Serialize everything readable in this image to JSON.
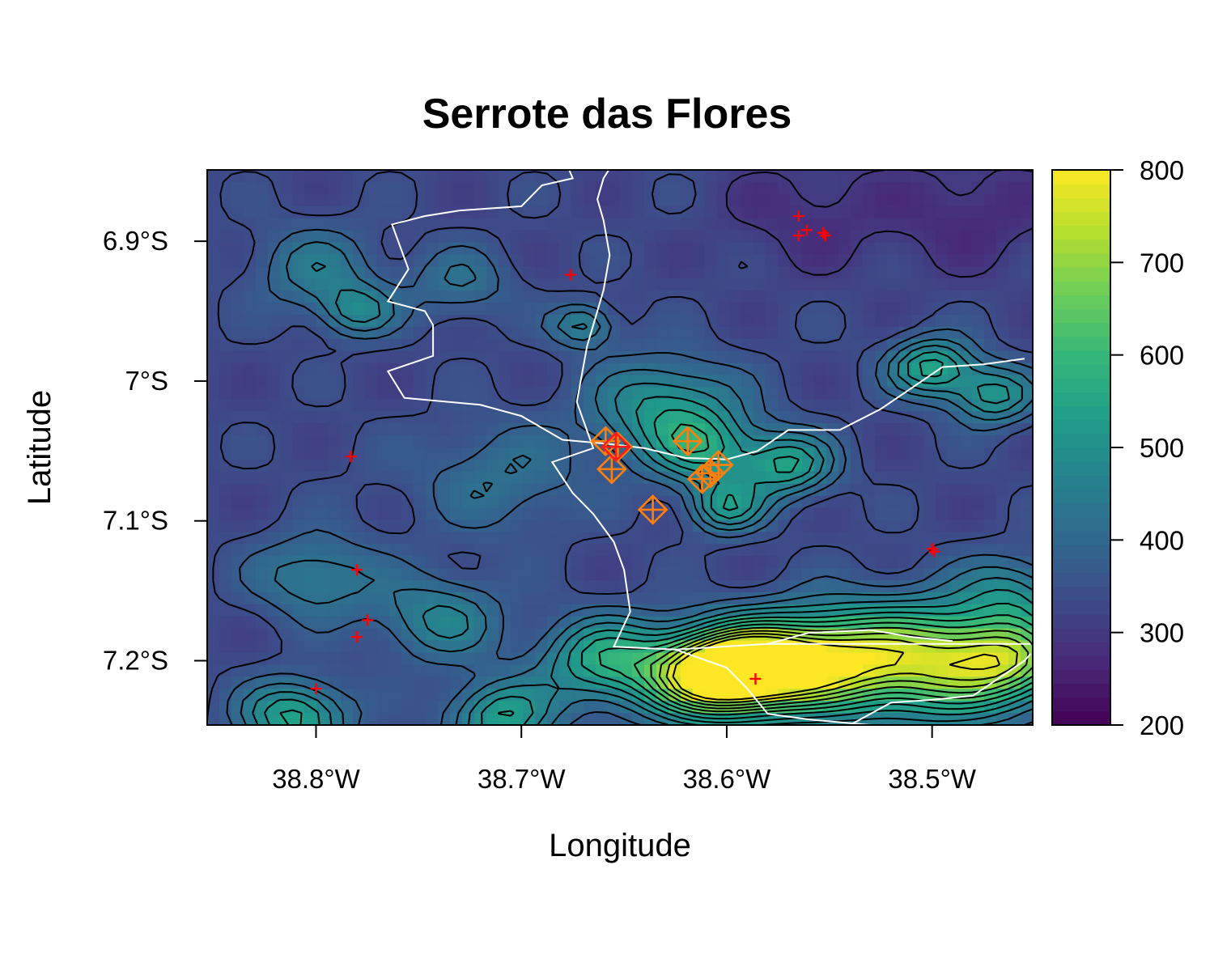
{
  "chart_data": {
    "type": "heatmap",
    "title": "Serrote das Flores",
    "xlabel": "Longitude",
    "ylabel": "Latitude",
    "xlim": [
      -38.853,
      -38.451
    ],
    "ylim": [
      -7.246,
      -6.849
    ],
    "x_ticks": [
      {
        "value": -38.8,
        "label": "38.8°W"
      },
      {
        "value": -38.7,
        "label": "38.7°W"
      },
      {
        "value": -38.6,
        "label": "38.6°W"
      },
      {
        "value": -38.5,
        "label": "38.5°W"
      }
    ],
    "y_ticks": [
      {
        "value": -6.9,
        "label": "6.9°S"
      },
      {
        "value": -7.0,
        "label": "7°S"
      },
      {
        "value": -7.1,
        "label": "7.1°S"
      },
      {
        "value": -7.2,
        "label": "7.2°S"
      }
    ],
    "colorbar": {
      "range": [
        200,
        800
      ],
      "ticks": [
        {
          "value": 200,
          "label": "200"
        },
        {
          "value": 300,
          "label": "300"
        },
        {
          "value": 400,
          "label": "400"
        },
        {
          "value": 500,
          "label": "500"
        },
        {
          "value": 600,
          "label": "600"
        },
        {
          "value": 700,
          "label": "700"
        },
        {
          "value": 800,
          "label": "800"
        }
      ],
      "palette": [
        "#440154",
        "#482878",
        "#3e4a89",
        "#31688e",
        "#26828e",
        "#1f9e89",
        "#35b779",
        "#6dcd59",
        "#b4de2c",
        "#fde725"
      ]
    },
    "field_features": [
      {
        "lon": -38.8,
        "lat": -6.92,
        "value": 440,
        "spread": 0.03
      },
      {
        "lon": -38.78,
        "lat": -6.95,
        "value": 470,
        "spread": 0.018
      },
      {
        "lon": -38.73,
        "lat": -6.93,
        "value": 420,
        "spread": 0.025
      },
      {
        "lon": -38.67,
        "lat": -6.96,
        "value": 480,
        "spread": 0.015
      },
      {
        "lon": -38.63,
        "lat": -7.02,
        "value": 520,
        "spread": 0.035
      },
      {
        "lon": -38.61,
        "lat": -7.05,
        "value": 500,
        "spread": 0.025
      },
      {
        "lon": -38.6,
        "lat": -7.09,
        "value": 520,
        "spread": 0.018
      },
      {
        "lon": -38.57,
        "lat": -7.06,
        "value": 540,
        "spread": 0.022
      },
      {
        "lon": -38.5,
        "lat": -6.99,
        "value": 560,
        "spread": 0.02
      },
      {
        "lon": -38.47,
        "lat": -7.01,
        "value": 520,
        "spread": 0.02
      },
      {
        "lon": -38.71,
        "lat": -7.07,
        "value": 420,
        "spread": 0.04
      },
      {
        "lon": -38.8,
        "lat": -7.14,
        "value": 460,
        "spread": 0.03
      },
      {
        "lon": -38.74,
        "lat": -7.17,
        "value": 470,
        "spread": 0.03
      },
      {
        "lon": -38.81,
        "lat": -7.24,
        "value": 560,
        "spread": 0.025
      },
      {
        "lon": -38.71,
        "lat": -7.24,
        "value": 540,
        "spread": 0.025
      },
      {
        "lon": -38.66,
        "lat": -7.2,
        "value": 560,
        "spread": 0.03
      },
      {
        "lon": -38.61,
        "lat": -7.21,
        "value": 760,
        "spread": 0.03
      },
      {
        "lon": -38.585,
        "lat": -7.205,
        "value": 720,
        "spread": 0.03
      },
      {
        "lon": -38.55,
        "lat": -7.2,
        "value": 690,
        "spread": 0.035
      },
      {
        "lon": -38.5,
        "lat": -7.2,
        "value": 680,
        "spread": 0.04
      },
      {
        "lon": -38.46,
        "lat": -7.2,
        "value": 620,
        "spread": 0.03
      },
      {
        "lon": -38.46,
        "lat": -7.15,
        "value": 460,
        "spread": 0.025
      },
      {
        "lon": -38.78,
        "lat": -7.06,
        "value": 340,
        "spread": 0.03
      },
      {
        "lon": -38.56,
        "lat": -6.88,
        "value": 280,
        "spread": 0.04
      },
      {
        "lon": -38.48,
        "lat": -6.88,
        "value": 270,
        "spread": 0.04
      },
      {
        "lon": -38.83,
        "lat": -7.0,
        "value": 330,
        "spread": 0.035
      }
    ],
    "borders": [
      [
        [
          -38.677,
          -6.848
        ],
        [
          -38.675,
          -6.855
        ],
        [
          -38.69,
          -6.86
        ],
        [
          -38.7,
          -6.875
        ],
        [
          -38.73,
          -6.878
        ],
        [
          -38.747,
          -6.882
        ],
        [
          -38.763,
          -6.888
        ],
        [
          -38.755,
          -6.92
        ],
        [
          -38.765,
          -6.943
        ],
        [
          -38.747,
          -6.95
        ],
        [
          -38.743,
          -6.96
        ],
        [
          -38.743,
          -6.982
        ],
        [
          -38.765,
          -6.993
        ],
        [
          -38.757,
          -7.012
        ],
        [
          -38.72,
          -7.017
        ],
        [
          -38.7,
          -7.025
        ],
        [
          -38.68,
          -7.042
        ],
        [
          -38.657,
          -7.045
        ],
        [
          -38.64,
          -7.048
        ],
        [
          -38.62,
          -7.055
        ],
        [
          -38.6,
          -7.056
        ],
        [
          -38.585,
          -7.05
        ],
        [
          -38.57,
          -7.035
        ],
        [
          -38.545,
          -7.035
        ],
        [
          -38.525,
          -7.02
        ],
        [
          -38.51,
          -7.005
        ],
        [
          -38.495,
          -6.99
        ],
        [
          -38.475,
          -6.988
        ],
        [
          -38.455,
          -6.984
        ]
      ],
      [
        [
          -38.657,
          -6.848
        ],
        [
          -38.66,
          -6.855
        ],
        [
          -38.663,
          -6.87
        ],
        [
          -38.66,
          -6.885
        ],
        [
          -38.657,
          -6.91
        ],
        [
          -38.66,
          -6.935
        ],
        [
          -38.668,
          -6.975
        ],
        [
          -38.673,
          -7.015
        ],
        [
          -38.665,
          -7.048
        ],
        [
          -38.685,
          -7.058
        ],
        [
          -38.675,
          -7.08
        ],
        [
          -38.665,
          -7.095
        ],
        [
          -38.655,
          -7.115
        ],
        [
          -38.65,
          -7.135
        ],
        [
          -38.647,
          -7.165
        ],
        [
          -38.655,
          -7.19
        ],
        [
          -38.625,
          -7.192
        ],
        [
          -38.58,
          -7.188
        ],
        [
          -38.55,
          -7.188
        ],
        [
          -38.5,
          -7.188
        ],
        [
          -38.452,
          -7.188
        ]
      ],
      [
        [
          -38.625,
          -7.192
        ],
        [
          -38.6,
          -7.205
        ],
        [
          -38.59,
          -7.22
        ],
        [
          -38.58,
          -7.238
        ],
        [
          -38.56,
          -7.242
        ],
        [
          -38.53,
          -7.246
        ]
      ],
      [
        [
          -38.54,
          -7.246
        ],
        [
          -38.52,
          -7.23
        ],
        [
          -38.5,
          -7.228
        ],
        [
          -38.48,
          -7.225
        ],
        [
          -38.465,
          -7.21
        ],
        [
          -38.455,
          -7.2
        ],
        [
          -38.452,
          -7.195
        ]
      ],
      [
        [
          -38.58,
          -7.188
        ],
        [
          -38.56,
          -7.18
        ],
        [
          -38.53,
          -7.178
        ],
        [
          -38.51,
          -7.183
        ],
        [
          -38.49,
          -7.186
        ]
      ]
    ],
    "sites_orange": [
      [
        -38.659,
        -7.043
      ],
      [
        -38.656,
        -7.063
      ],
      [
        -38.653,
        -7.047
      ],
      [
        -38.636,
        -7.092
      ],
      [
        -38.619,
        -7.043
      ],
      [
        -38.612,
        -7.07
      ],
      [
        -38.608,
        -7.066
      ],
      [
        -38.604,
        -7.06
      ]
    ],
    "sites_red_diamond": [
      [
        -38.654,
        -7.047
      ]
    ],
    "points_red": [
      [
        -38.676,
        -6.924
      ],
      [
        -38.565,
        -6.882
      ],
      [
        -38.565,
        -6.896
      ],
      [
        -38.561,
        -6.892
      ],
      [
        -38.553,
        -6.894
      ],
      [
        -38.552,
        -6.896
      ],
      [
        -38.783,
        -7.054
      ],
      [
        -38.78,
        -7.135
      ],
      [
        -38.775,
        -7.171
      ],
      [
        -38.78,
        -7.183
      ],
      [
        -38.8,
        -7.22
      ],
      [
        -38.586,
        -7.213
      ],
      [
        -38.5,
        -7.12
      ],
      [
        -38.499,
        -7.122
      ]
    ]
  }
}
